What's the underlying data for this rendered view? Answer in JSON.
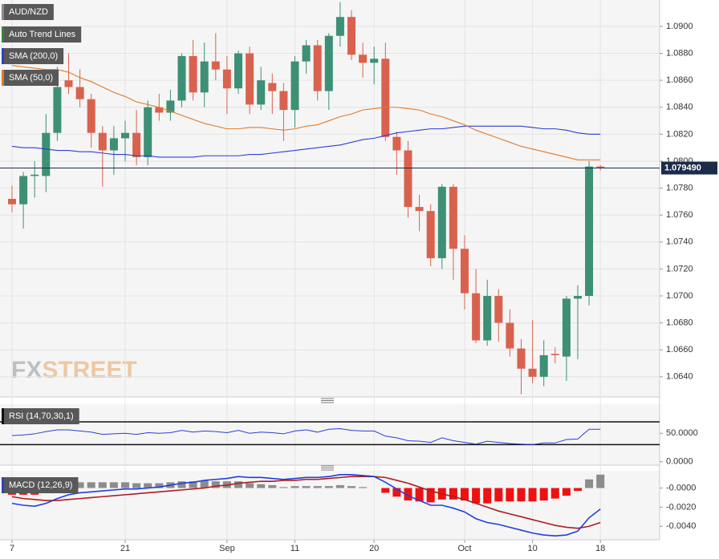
{
  "chart_data": [
    {
      "type": "candlestick",
      "watermark": {
        "left": "FX",
        "right": "STREET"
      },
      "legend": [
        {
          "name": "AUD/NZD",
          "color": "#8a8a8a"
        },
        {
          "name": "Auto Trend Lines",
          "color": "#2e8b2e"
        }
      ],
      "categories": [
        "7",
        null,
        null,
        null,
        null,
        null,
        null,
        null,
        null,
        null,
        "21",
        null,
        null,
        null,
        null,
        null,
        null,
        null,
        null,
        "Sep",
        null,
        null,
        null,
        null,
        null,
        "11",
        null,
        null,
        null,
        null,
        null,
        null,
        "20",
        null,
        null,
        null,
        null,
        null,
        null,
        null,
        "Oct",
        null,
        null,
        null,
        null,
        null,
        "10",
        null,
        null,
        null,
        null,
        null,
        "18"
      ],
      "candles": {
        "up_color": "#3d8f75",
        "down_color": "#d9624f",
        "open": [
          1.0772,
          1.0768,
          1.0789,
          1.0789,
          1.0821,
          1.086,
          1.0855,
          1.0846,
          1.0821,
          1.0808,
          1.0817,
          1.0821,
          1.0803,
          1.084,
          1.0836,
          1.0845,
          1.0878,
          1.0851,
          1.0874,
          1.0868,
          1.0854,
          1.088,
          1.0842,
          1.0858,
          1.0852,
          1.0838,
          1.0874,
          1.0886,
          1.0852,
          1.0893,
          1.0907,
          1.0879,
          1.0873,
          1.0876,
          1.0818,
          1.0808,
          1.0766,
          1.0763,
          1.0728,
          1.0781,
          1.0735,
          1.0702,
          1.0667,
          1.07,
          1.068,
          1.0661,
          1.0646,
          1.064,
          1.0657,
          1.0655,
          1.0698,
          1.07,
          1.0796
        ],
        "high": [
          1.0782,
          1.0792,
          1.08,
          1.0835,
          1.087,
          1.088,
          1.0868,
          1.085,
          1.0826,
          1.0826,
          1.083,
          1.0838,
          1.0845,
          1.085,
          1.0853,
          1.088,
          1.089,
          1.0888,
          1.0895,
          1.0878,
          1.0882,
          1.0885,
          1.087,
          1.0865,
          1.0858,
          1.0878,
          1.089,
          1.089,
          1.0895,
          1.0918,
          1.0912,
          1.0888,
          1.0885,
          1.0888,
          1.0822,
          1.0815,
          1.0775,
          1.0768,
          1.0783,
          1.0783,
          1.0745,
          1.072,
          1.0712,
          1.0705,
          1.069,
          1.0668,
          1.0682,
          1.0667,
          1.0662,
          1.07,
          1.0708,
          1.08,
          1.0797
        ],
        "low": [
          1.0762,
          1.075,
          1.0773,
          1.0777,
          1.0815,
          1.085,
          1.084,
          1.081,
          1.0781,
          1.079,
          1.08,
          1.0797,
          1.0797,
          1.083,
          1.083,
          1.084,
          1.0845,
          1.084,
          1.086,
          1.0835,
          1.085,
          1.0835,
          1.0838,
          1.0835,
          1.0815,
          1.0825,
          1.0865,
          1.0845,
          1.0838,
          1.0885,
          1.0875,
          1.0862,
          1.0857,
          1.0815,
          1.079,
          1.0758,
          1.0748,
          1.0722,
          1.072,
          1.0712,
          1.069,
          1.0665,
          1.0663,
          1.0666,
          1.0655,
          1.0627,
          1.0635,
          1.0633,
          1.065,
          1.0637,
          1.0653,
          1.0693,
          1.0793
        ],
        "close": [
          1.0768,
          1.0789,
          1.079,
          1.0821,
          1.0855,
          1.0855,
          1.0846,
          1.0821,
          1.0808,
          1.0817,
          1.0821,
          1.0803,
          1.084,
          1.0836,
          1.0845,
          1.0878,
          1.0851,
          1.0874,
          1.0868,
          1.0854,
          1.088,
          1.0842,
          1.086,
          1.0852,
          1.0838,
          1.0874,
          1.0886,
          1.0852,
          1.0893,
          1.0907,
          1.0879,
          1.0873,
          1.0876,
          1.0818,
          1.0808,
          1.0766,
          1.0763,
          1.0728,
          1.0781,
          1.0735,
          1.0702,
          1.0667,
          1.07,
          1.068,
          1.0661,
          1.0646,
          1.064,
          1.0656,
          1.0656,
          1.0698,
          1.07,
          1.0796,
          1.07949
        ]
      },
      "series": [
        {
          "name": "SMA (200,0)",
          "color": "#2b3fd4",
          "values": [
            1.0811,
            1.081,
            1.081,
            1.0809,
            1.0808,
            1.0808,
            1.0807,
            1.0807,
            1.0806,
            1.0805,
            1.0805,
            1.0804,
            1.0804,
            1.0803,
            1.0803,
            1.0803,
            1.0803,
            1.0804,
            1.0804,
            1.0804,
            1.0804,
            1.0805,
            1.0805,
            1.0806,
            1.0807,
            1.0808,
            1.0809,
            1.081,
            1.0811,
            1.0812,
            1.0814,
            1.0816,
            1.0817,
            1.0819,
            1.0821,
            1.0822,
            1.0823,
            1.0824,
            1.0824,
            1.0825,
            1.0826,
            1.0826,
            1.0826,
            1.0826,
            1.0826,
            1.0826,
            1.0825,
            1.0824,
            1.0824,
            1.0823,
            1.0821,
            1.082,
            1.082
          ]
        },
        {
          "name": "SMA (50,0)",
          "color": "#e07b2a",
          "values": [
            1.0871,
            1.087,
            1.0869,
            1.0868,
            1.0868,
            1.0866,
            1.0862,
            1.0859,
            1.0855,
            1.0851,
            1.0848,
            1.0844,
            1.0842,
            1.084,
            1.0837,
            1.0834,
            1.0831,
            1.0828,
            1.0826,
            1.0824,
            1.0824,
            1.0825,
            1.0825,
            1.0824,
            1.0823,
            1.0824,
            1.0826,
            1.0827,
            1.083,
            1.0833,
            1.0835,
            1.0838,
            1.0839,
            1.084,
            1.084,
            1.0839,
            1.0838,
            1.0835,
            1.0833,
            1.083,
            1.0827,
            1.0823,
            1.082,
            1.0817,
            1.0814,
            1.0811,
            1.0809,
            1.0807,
            1.0805,
            1.0803,
            1.0801,
            1.0801,
            1.0801
          ]
        }
      ],
      "last_price": {
        "value": 1.07949,
        "label": "1.079490",
        "color": "#1c2b4a"
      },
      "ylim": [
        1.0625,
        1.09196
      ],
      "yticks": [
        {
          "value": 1.064,
          "label": "1.0640"
        },
        {
          "value": 1.066,
          "label": "1.0660"
        },
        {
          "value": 1.068,
          "label": "1.0680"
        },
        {
          "value": 1.07,
          "label": "1.0700"
        },
        {
          "value": 1.072,
          "label": "1.0720"
        },
        {
          "value": 1.074,
          "label": "1.0740"
        },
        {
          "value": 1.076,
          "label": "1.0760"
        },
        {
          "value": 1.078,
          "label": "1.0780"
        },
        {
          "value": 1.08,
          "label": "1.0800"
        },
        {
          "value": 1.082,
          "label": "1.0820"
        },
        {
          "value": 1.084,
          "label": "1.0840"
        },
        {
          "value": 1.086,
          "label": "1.0860"
        },
        {
          "value": 1.088,
          "label": "1.0880"
        },
        {
          "value": 1.09,
          "label": "1.0900"
        }
      ],
      "grid": true
    },
    {
      "type": "line",
      "title": "RSI (14,70,30,1)",
      "title_color": "#111111",
      "color": "#2b3fd4",
      "values": [
        46,
        47,
        49,
        53,
        56,
        56,
        54,
        52,
        48,
        49,
        50,
        48,
        51,
        50,
        51,
        55,
        52,
        54,
        53,
        51,
        55,
        50,
        52,
        51,
        49,
        54,
        56,
        52,
        57,
        58,
        55,
        54,
        54,
        45,
        42,
        37,
        36,
        34,
        42,
        37,
        34,
        31,
        36,
        34,
        32,
        31,
        30,
        33,
        33,
        39,
        40,
        57,
        57
      ],
      "levels": [
        70,
        30
      ],
      "ylim": [
        -6,
        101
      ],
      "yticks": [
        {
          "value": 0,
          "label": "0.0000"
        },
        {
          "value": 50,
          "label": "50.0000"
        }
      ]
    },
    {
      "type": "macd",
      "title": "MACD (12,26,9)",
      "title_color": "#2b3fd4",
      "macd": {
        "color": "#1f3fe0",
        "values": [
          -0.0016,
          -0.0018,
          -0.0019,
          -0.0016,
          -0.0011,
          -0.0007,
          -0.0005,
          -0.0004,
          -0.0003,
          -0.0002,
          -0.0001,
          -0.0001,
          0,
          0.0001,
          0.0003,
          0.0005,
          0.0006,
          0.0008,
          0.0009,
          0.001,
          0.0012,
          0.0011,
          0.0011,
          0.001,
          0.0009,
          0.001,
          0.0011,
          0.0011,
          0.0012,
          0.0014,
          0.0014,
          0.0013,
          0.0012,
          0.0006,
          -0.0001,
          -0.0008,
          -0.0013,
          -0.0018,
          -0.0018,
          -0.0021,
          -0.0025,
          -0.0032,
          -0.0036,
          -0.0038,
          -0.0041,
          -0.0044,
          -0.0047,
          -0.0049,
          -0.005,
          -0.0049,
          -0.0045,
          -0.0031,
          -0.0022
        ]
      },
      "signal": {
        "color": "#b01c1c",
        "values": [
          -0.0009,
          -0.0011,
          -0.0012,
          -0.0013,
          -0.0013,
          -0.0012,
          -0.0011,
          -0.001,
          -0.0009,
          -0.0008,
          -0.0007,
          -0.0006,
          -0.0005,
          -0.0004,
          -0.0003,
          -0.0002,
          -0.0001,
          0,
          0.0002,
          0.0003,
          0.0005,
          0.0006,
          0.0007,
          0.0007,
          0.0008,
          0.0008,
          0.0009,
          0.0009,
          0.001,
          0.0011,
          0.0012,
          0.0012,
          0.0012,
          0.0011,
          0.0008,
          0.0005,
          0.0001,
          -0.0003,
          -0.0006,
          -0.0009,
          -0.0012,
          -0.0016,
          -0.002,
          -0.0024,
          -0.0027,
          -0.003,
          -0.0033,
          -0.0036,
          -0.0039,
          -0.0041,
          -0.0042,
          -0.004,
          -0.0036
        ]
      },
      "histogram": {
        "positive_color": "#8c8c8c",
        "negative_color": "#ee1111",
        "values": [
          -0.0007,
          -0.0007,
          -0.0007,
          -0.0003,
          0.0002,
          0.0005,
          0.0006,
          0.0006,
          0.0006,
          0.0006,
          0.0006,
          0.0005,
          0.0005,
          0.0005,
          0.0006,
          0.0007,
          0.0007,
          0.0008,
          0.0007,
          0.0007,
          0.0007,
          0.0005,
          0.0004,
          0.0003,
          0.0001,
          0.0002,
          0.0002,
          0.0002,
          0.0002,
          0.0003,
          0.0002,
          0.0001,
          0,
          -0.0005,
          -0.0009,
          -0.0013,
          -0.0014,
          -0.0015,
          -0.0012,
          -0.0012,
          -0.0013,
          -0.0016,
          -0.0016,
          -0.0014,
          -0.0014,
          -0.0014,
          -0.0014,
          -0.0013,
          -0.0011,
          -0.0008,
          -0.0003,
          0.0009,
          0.0014
        ]
      },
      "ylim": [
        -0.0054,
        0.0018
      ],
      "yticks": [
        {
          "value": 0,
          "label": "-0.0000"
        },
        {
          "value": -0.002,
          "label": "-0.0020"
        },
        {
          "value": -0.004,
          "label": "-0.0040"
        }
      ]
    }
  ]
}
